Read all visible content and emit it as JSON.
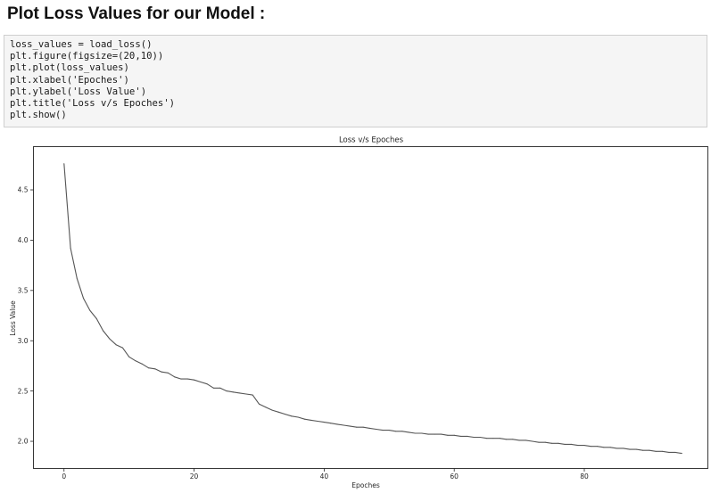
{
  "notebook": {
    "heading": "Plot Loss Values for our Model :",
    "code_lines": [
      "loss_values = load_loss()",
      "plt.figure(figsize=(20,10))",
      "plt.plot(loss_values)",
      "plt.xlabel('Epoches')",
      "plt.ylabel('Loss Value')",
      "plt.title('Loss v/s Epoches')",
      "plt.show()"
    ]
  },
  "chart_data": {
    "type": "line",
    "title": "Loss v/s Epoches",
    "xlabel": "Epoches",
    "ylabel": "Loss Value",
    "xlim": [
      -4.7,
      99
    ],
    "ylim": [
      1.73,
      4.93
    ],
    "xticks": [
      0,
      20,
      40,
      60,
      80
    ],
    "xtick_labels": [
      "0",
      "20",
      "40",
      "60",
      "80"
    ],
    "yticks": [
      2.0,
      2.5,
      3.0,
      3.5,
      4.0,
      4.5
    ],
    "ytick_labels": [
      "2.0",
      "2.5",
      "3.0",
      "3.5",
      "4.0",
      "4.5"
    ],
    "grid": false,
    "line_color": "#555555",
    "series": [
      {
        "x": [
          0,
          1,
          2,
          3,
          4,
          5,
          6,
          7,
          8,
          9,
          10,
          11,
          12,
          13,
          14,
          15,
          16,
          17,
          18,
          19,
          20,
          21,
          22,
          23,
          24,
          25,
          26,
          27,
          28,
          29,
          30,
          31,
          32,
          33,
          34,
          35,
          36,
          37,
          38,
          39,
          40,
          41,
          42,
          43,
          44,
          45,
          46,
          47,
          48,
          49,
          50,
          51,
          52,
          53,
          54,
          55,
          56,
          57,
          58,
          59,
          60,
          61,
          62,
          63,
          64,
          65,
          66,
          67,
          68,
          69,
          70,
          71,
          72,
          73,
          74,
          75,
          76,
          77,
          78,
          79,
          80,
          81,
          82,
          83,
          84,
          85,
          86,
          87,
          88,
          89,
          90,
          91,
          92,
          93,
          94,
          95
        ],
        "y": [
          4.76,
          3.92,
          3.62,
          3.42,
          3.3,
          3.22,
          3.1,
          3.02,
          2.96,
          2.93,
          2.84,
          2.8,
          2.77,
          2.73,
          2.72,
          2.69,
          2.68,
          2.64,
          2.62,
          2.62,
          2.61,
          2.59,
          2.57,
          2.53,
          2.53,
          2.5,
          2.49,
          2.48,
          2.47,
          2.46,
          2.37,
          2.34,
          2.31,
          2.29,
          2.27,
          2.25,
          2.24,
          2.22,
          2.21,
          2.2,
          2.19,
          2.18,
          2.17,
          2.16,
          2.15,
          2.14,
          2.14,
          2.13,
          2.12,
          2.11,
          2.11,
          2.1,
          2.1,
          2.09,
          2.08,
          2.08,
          2.07,
          2.07,
          2.07,
          2.06,
          2.06,
          2.05,
          2.05,
          2.04,
          2.04,
          2.03,
          2.03,
          2.03,
          2.02,
          2.02,
          2.01,
          2.01,
          2.0,
          1.99,
          1.99,
          1.98,
          1.98,
          1.97,
          1.97,
          1.96,
          1.96,
          1.95,
          1.95,
          1.94,
          1.94,
          1.93,
          1.93,
          1.92,
          1.92,
          1.91,
          1.91,
          1.9,
          1.9,
          1.89,
          1.89,
          1.88
        ]
      }
    ]
  }
}
